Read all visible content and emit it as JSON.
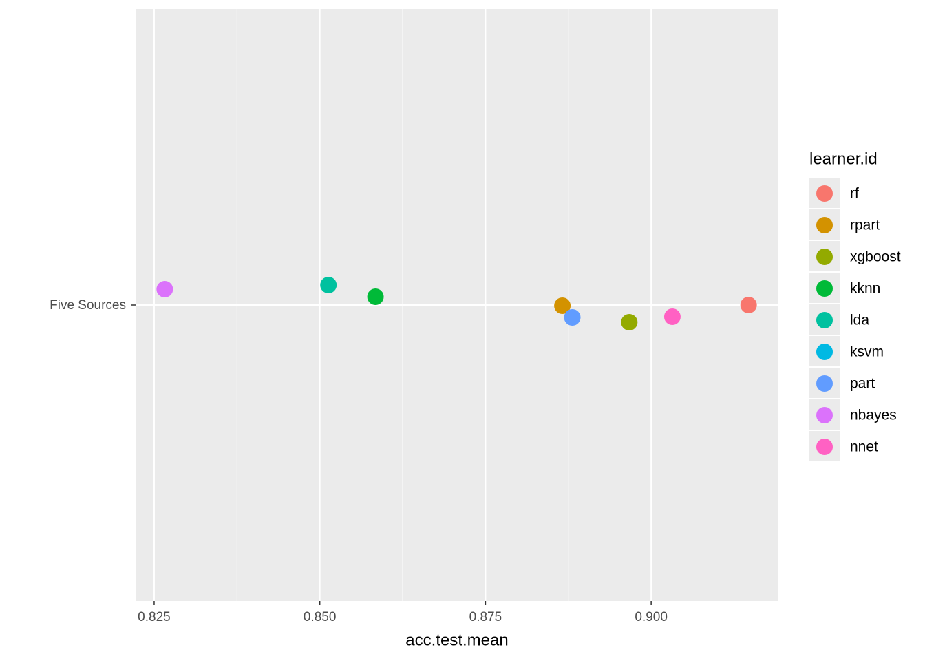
{
  "chart_data": {
    "type": "scatter",
    "categories": [
      "Five Sources"
    ],
    "x_label": "acc.test.mean",
    "legend_title": "learner.id",
    "xlim": [
      0.8222,
      0.9192
    ],
    "xticks": [
      {
        "value": 0.825,
        "label": "0.825"
      },
      {
        "value": 0.85,
        "label": "0.850"
      },
      {
        "value": 0.875,
        "label": "0.875"
      },
      {
        "value": 0.9,
        "label": "0.900"
      }
    ],
    "grid": true,
    "legend_position": "right",
    "series": [
      {
        "name": "rf",
        "color": "#F8766D",
        "values": [
          0.9147
        ]
      },
      {
        "name": "rpart",
        "color": "#D39200",
        "values": [
          0.8866
        ]
      },
      {
        "name": "xgboost",
        "color": "#93AA00",
        "values": [
          0.8967
        ]
      },
      {
        "name": "kknn",
        "color": "#00BA38",
        "values": [
          0.8584
        ]
      },
      {
        "name": "lda",
        "color": "#00C19F",
        "values": [
          0.8513
        ]
      },
      {
        "name": "ksvm",
        "color": "#00B9E3",
        "values": [
          null
        ]
      },
      {
        "name": "part",
        "color": "#619CFF",
        "values": [
          0.8881
        ]
      },
      {
        "name": "nbayes",
        "color": "#DB72FB",
        "values": [
          0.8266
        ]
      },
      {
        "name": "nnet",
        "color": "#FF61C3",
        "values": [
          0.9032
        ]
      }
    ]
  }
}
